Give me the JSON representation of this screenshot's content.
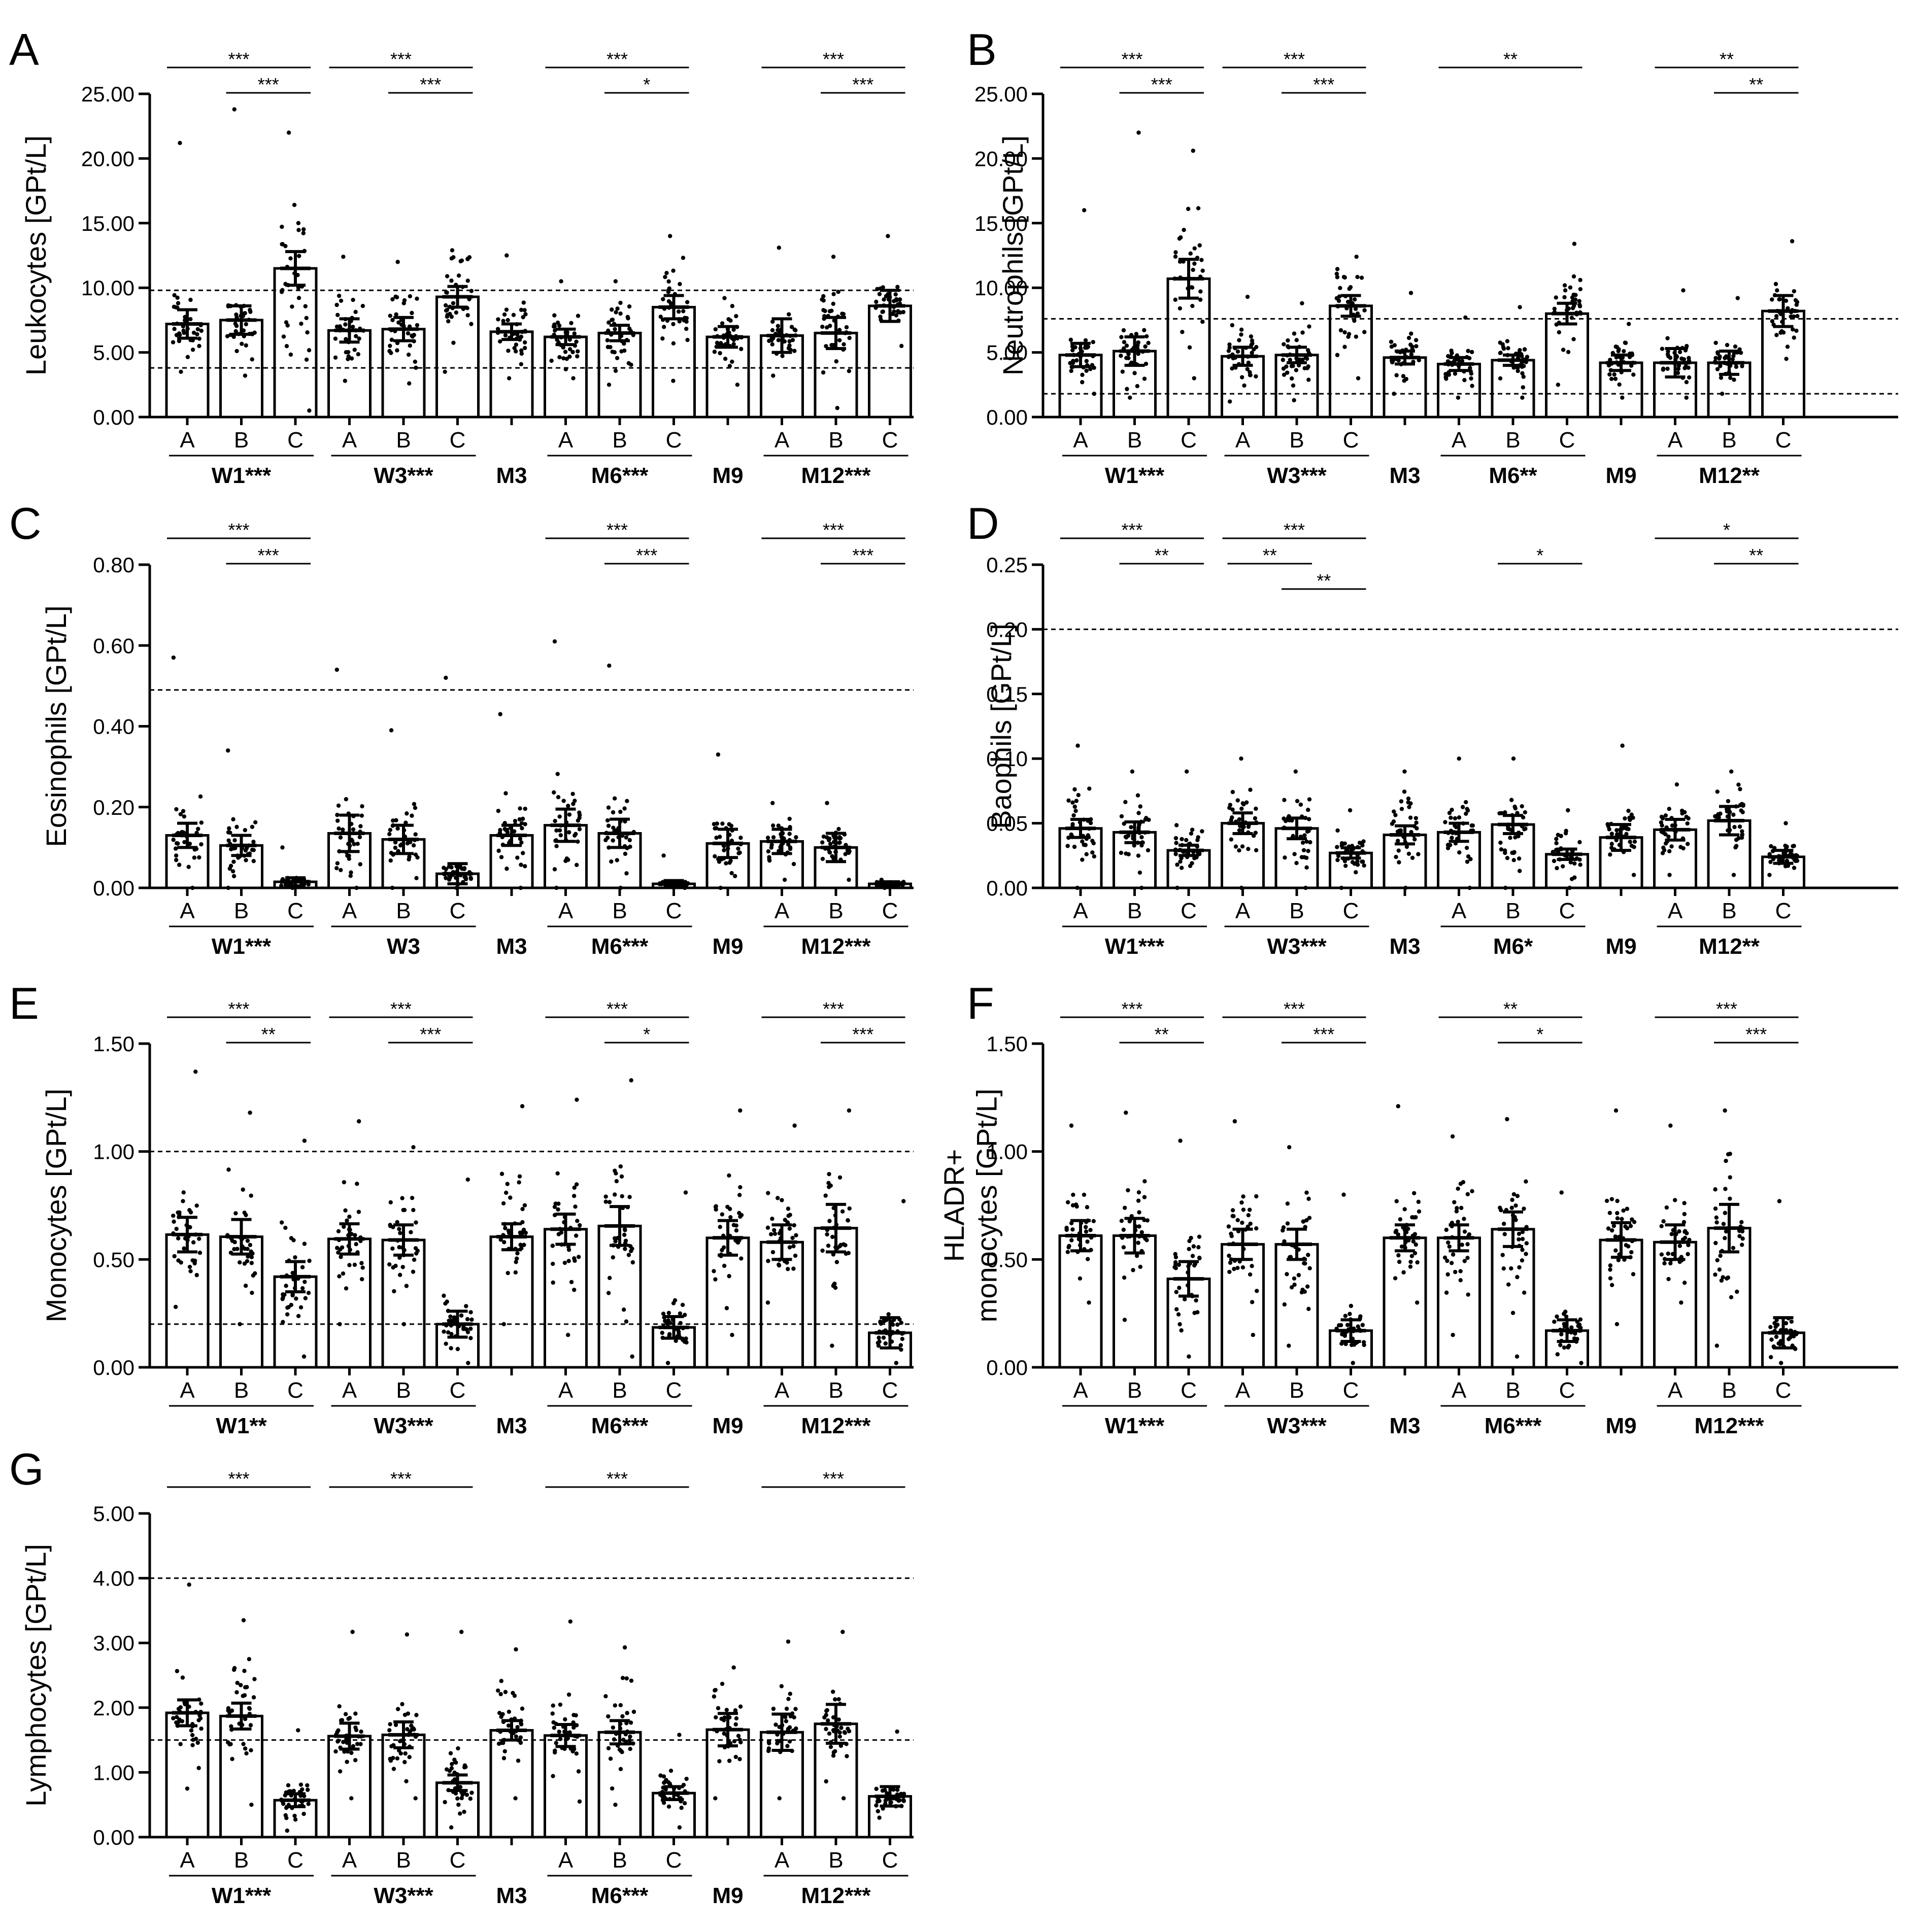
{
  "panels": [
    {
      "letter": "A",
      "chart_data": {
        "type": "bar",
        "title": "",
        "ylabel": "Leukocytes [GPt/L]",
        "ylim": [
          0,
          25
        ],
        "yticks": [
          "0.00",
          "5.00",
          "10.00",
          "15.00",
          "20.00",
          "25.00"
        ],
        "reference_lines": [
          3.8,
          9.8
        ],
        "categories": [
          "A",
          "B",
          "C",
          "A",
          "B",
          "C",
          "",
          "A",
          "B",
          "C",
          "",
          "A",
          "B",
          "C"
        ],
        "timepoints": [
          "W1***",
          "W3***",
          "M3",
          "M6***",
          "M9",
          "M12***"
        ],
        "bar_positions": [
          0,
          1,
          2,
          3,
          4,
          5,
          6,
          7,
          8,
          9,
          10,
          11,
          12,
          13
        ],
        "values": [
          7.2,
          7.5,
          11.5,
          6.7,
          6.8,
          9.3,
          6.6,
          6.2,
          6.5,
          8.5,
          6.2,
          6.3,
          6.5,
          8.6
        ],
        "sem": [
          1.1,
          1.1,
          1.3,
          0.9,
          0.9,
          0.8,
          0.6,
          0.6,
          0.6,
          0.9,
          0.8,
          1.3,
          1.2,
          1.2
        ],
        "maxima": [
          21.2,
          23.8,
          22.0,
          12.4,
          12.0,
          12.9,
          12.5,
          10.5,
          10.5,
          14.0,
          9.2,
          13.1,
          12.4,
          14.0
        ],
        "minima": [
          3.5,
          3.2,
          0.5,
          2.8,
          2.6,
          3.5,
          3.0,
          3.0,
          2.5,
          2.8,
          2.5,
          3.2,
          0.7,
          5.5
        ],
        "significance": [
          {
            "from": 0,
            "to": 2,
            "label": "***"
          },
          {
            "from": 1,
            "to": 2,
            "label": "***"
          },
          {
            "from": 3,
            "to": 5,
            "label": "***"
          },
          {
            "from": 4,
            "to": 5,
            "label": "***"
          },
          {
            "from": 7,
            "to": 9,
            "label": "***"
          },
          {
            "from": 8,
            "to": 9,
            "label": "*"
          },
          {
            "from": 11,
            "to": 13,
            "label": "***"
          },
          {
            "from": 12,
            "to": 13,
            "label": "***"
          }
        ]
      }
    },
    {
      "letter": "B",
      "chart_data": {
        "type": "bar",
        "title": "",
        "ylabel": "Neutrophils [GPt/L]",
        "ylim": [
          0,
          25
        ],
        "yticks": [
          "0.00",
          "5.00",
          "10.00",
          "15.00",
          "20.00",
          "25.00"
        ],
        "reference_lines": [
          1.8,
          7.6
        ],
        "categories": [
          "A",
          "B",
          "C",
          "A",
          "B",
          "C",
          "",
          "A",
          "B",
          "C",
          "",
          "A",
          "B",
          "C"
        ],
        "timepoints": [
          "W1***",
          "W3***",
          "M3",
          "M6**",
          "M9",
          "M12**"
        ],
        "bar_positions": [
          0,
          1,
          2,
          3,
          4,
          5,
          6,
          7,
          8,
          9,
          10,
          11,
          12,
          13
        ],
        "values": [
          4.8,
          5.1,
          10.7,
          4.7,
          4.8,
          8.6,
          4.6,
          4.1,
          4.4,
          8.0,
          4.2,
          4.2,
          4.2,
          8.2
        ],
        "sem": [
          0.9,
          1.1,
          1.5,
          0.7,
          0.6,
          0.8,
          0.5,
          0.5,
          0.4,
          0.8,
          0.6,
          1.1,
          0.9,
          1.2
        ],
        "maxima": [
          16.0,
          22.0,
          20.6,
          9.3,
          8.8,
          12.4,
          9.6,
          7.7,
          8.5,
          13.4,
          7.2,
          9.8,
          9.2,
          13.6
        ],
        "minima": [
          1.8,
          1.5,
          3.0,
          1.2,
          1.3,
          3.0,
          1.8,
          1.5,
          1.5,
          2.5,
          1.5,
          1.5,
          1.8,
          4.5
        ],
        "significance": [
          {
            "from": 0,
            "to": 2,
            "label": "***"
          },
          {
            "from": 1,
            "to": 2,
            "label": "***"
          },
          {
            "from": 3,
            "to": 5,
            "label": "***"
          },
          {
            "from": 4,
            "to": 5,
            "label": "***"
          },
          {
            "from": 7,
            "to": 9,
            "label": "**"
          },
          {
            "from": 11,
            "to": 13,
            "label": "**"
          },
          {
            "from": 12,
            "to": 13,
            "label": "**"
          }
        ]
      }
    },
    {
      "letter": "C",
      "chart_data": {
        "type": "bar",
        "title": "",
        "ylabel": "Eosinophils [GPt/L]",
        "ylim": [
          0,
          0.8
        ],
        "yticks": [
          "0.00",
          "0.20",
          "0.40",
          "0.60",
          "0.80"
        ],
        "reference_lines": [
          0.49
        ],
        "categories": [
          "A",
          "B",
          "C",
          "A",
          "B",
          "C",
          "",
          "A",
          "B",
          "C",
          "",
          "A",
          "B",
          "C"
        ],
        "timepoints": [
          "W1***",
          "W3",
          "M3",
          "M6***",
          "M9",
          "M12***"
        ],
        "bar_positions": [
          0,
          1,
          2,
          3,
          4,
          5,
          6,
          7,
          8,
          9,
          10,
          11,
          12,
          13
        ],
        "values": [
          0.13,
          0.105,
          0.015,
          0.135,
          0.12,
          0.035,
          0.13,
          0.155,
          0.135,
          0.01,
          0.11,
          0.115,
          0.1,
          0.01
        ],
        "sem": [
          0.03,
          0.025,
          0.01,
          0.045,
          0.035,
          0.025,
          0.025,
          0.04,
          0.035,
          0.008,
          0.035,
          0.03,
          0.035,
          0.005
        ],
        "maxima": [
          0.57,
          0.34,
          0.1,
          0.54,
          0.39,
          0.52,
          0.43,
          0.61,
          0.55,
          0.08,
          0.33,
          0.21,
          0.21,
          0.02
        ],
        "minima": [
          0.0,
          0.0,
          0.0,
          0.0,
          0.0,
          0.0,
          0.0,
          0.0,
          0.0,
          0.0,
          0.0,
          0.02,
          0.02,
          0.0
        ],
        "significance": [
          {
            "from": 0,
            "to": 2,
            "label": "***"
          },
          {
            "from": 1,
            "to": 2,
            "label": "***"
          },
          {
            "from": 7,
            "to": 9,
            "label": "***"
          },
          {
            "from": 8,
            "to": 9,
            "label": "***"
          },
          {
            "from": 11,
            "to": 13,
            "label": "***"
          },
          {
            "from": 12,
            "to": 13,
            "label": "***"
          }
        ]
      }
    },
    {
      "letter": "D",
      "chart_data": {
        "type": "bar",
        "title": "",
        "ylabel": "Baophils [GPt/L]",
        "ylim": [
          0,
          0.25
        ],
        "yticks": [
          "0.00",
          "0.05",
          "0.10",
          "0.15",
          "0.20",
          "0.25"
        ],
        "reference_lines": [
          0.2
        ],
        "categories": [
          "A",
          "B",
          "C",
          "A",
          "B",
          "C",
          "",
          "A",
          "B",
          "C",
          "",
          "A",
          "B",
          "C"
        ],
        "timepoints": [
          "W1***",
          "W3***",
          "M3",
          "M6*",
          "M9",
          "M12**"
        ],
        "bar_positions": [
          0,
          1,
          2,
          3,
          4,
          5,
          6,
          7,
          8,
          9,
          10,
          11,
          12,
          13
        ],
        "values": [
          0.046,
          0.043,
          0.029,
          0.05,
          0.046,
          0.027,
          0.041,
          0.043,
          0.049,
          0.026,
          0.039,
          0.045,
          0.052,
          0.024
        ],
        "sem": [
          0.007,
          0.008,
          0.004,
          0.008,
          0.008,
          0.004,
          0.007,
          0.007,
          0.007,
          0.004,
          0.01,
          0.008,
          0.011,
          0.005
        ],
        "maxima": [
          0.11,
          0.09,
          0.09,
          0.1,
          0.09,
          0.06,
          0.09,
          0.1,
          0.1,
          0.06,
          0.11,
          0.08,
          0.09,
          0.05
        ],
        "minima": [
          0.0,
          0.0,
          0.0,
          0.0,
          0.0,
          0.0,
          0.0,
          0.0,
          0.0,
          0.0,
          0.01,
          0.01,
          0.01,
          0.01
        ],
        "significance": [
          {
            "from": 0,
            "to": 2,
            "label": "***"
          },
          {
            "from": 1,
            "to": 2,
            "label": "**"
          },
          {
            "from": 3,
            "to": 5,
            "label": "***"
          },
          {
            "from": 3,
            "to": 4,
            "label": "**"
          },
          {
            "from": 4,
            "to": 5,
            "label": "**"
          },
          {
            "from": 8,
            "to": 9,
            "label": "*"
          },
          {
            "from": 11,
            "to": 13,
            "label": "*"
          },
          {
            "from": 12,
            "to": 13,
            "label": "**"
          }
        ]
      }
    },
    {
      "letter": "E",
      "chart_data": {
        "type": "bar",
        "title": "",
        "ylabel": "Monocytes [GPt/L]",
        "ylim": [
          0,
          1.5
        ],
        "yticks": [
          "0.00",
          "0.50",
          "1.00",
          "1.50"
        ],
        "reference_lines": [
          0.2,
          1.0
        ],
        "categories": [
          "A",
          "B",
          "C",
          "A",
          "B",
          "C",
          "",
          "A",
          "B",
          "C",
          "",
          "A",
          "B",
          "C"
        ],
        "timepoints": [
          "W1**",
          "W3***",
          "M3",
          "M6***",
          "M9",
          "M12***"
        ],
        "bar_positions": [
          0,
          1,
          2,
          3,
          4,
          5,
          6,
          7,
          8,
          9,
          10,
          11,
          12,
          13
        ],
        "values": [
          0.615,
          0.605,
          0.42,
          0.595,
          0.59,
          0.2,
          0.605,
          0.64,
          0.655,
          0.185,
          0.6,
          0.58,
          0.645,
          0.16
        ],
        "sem": [
          0.08,
          0.08,
          0.07,
          0.07,
          0.07,
          0.06,
          0.06,
          0.07,
          0.09,
          0.05,
          0.08,
          0.08,
          0.11,
          0.07
        ],
        "maxima": [
          1.37,
          1.18,
          1.05,
          1.14,
          1.02,
          0.87,
          1.21,
          1.24,
          1.33,
          0.81,
          1.19,
          1.12,
          1.19,
          0.77
        ],
        "minima": [
          0.28,
          0.2,
          0.05,
          0.2,
          0.2,
          0.02,
          0.2,
          0.15,
          0.05,
          0.02,
          0.15,
          0.3,
          0.1,
          0.02
        ],
        "significance": [
          {
            "from": 0,
            "to": 2,
            "label": "***"
          },
          {
            "from": 1,
            "to": 2,
            "label": "**"
          },
          {
            "from": 3,
            "to": 5,
            "label": "***"
          },
          {
            "from": 4,
            "to": 5,
            "label": "***"
          },
          {
            "from": 7,
            "to": 9,
            "label": "***"
          },
          {
            "from": 8,
            "to": 9,
            "label": "*"
          },
          {
            "from": 11,
            "to": 13,
            "label": "***"
          },
          {
            "from": 12,
            "to": 13,
            "label": "***"
          }
        ]
      }
    },
    {
      "letter": "F",
      "chart_data": {
        "type": "bar",
        "title": "",
        "ylabel": "HLADR+ monocytes [GPt/L]",
        "ylim": [
          0,
          1.5
        ],
        "yticks": [
          "0.00",
          "0.50",
          "1.00",
          "1.50"
        ],
        "reference_lines": [],
        "categories": [
          "A",
          "B",
          "C",
          "A",
          "B",
          "C",
          "",
          "A",
          "B",
          "C",
          "",
          "A",
          "B",
          "C"
        ],
        "timepoints": [
          "W1***",
          "W3***",
          "M3",
          "M6***",
          "M9",
          "M12***"
        ],
        "bar_positions": [
          0,
          1,
          2,
          3,
          4,
          5,
          6,
          7,
          8,
          9,
          10,
          11,
          12,
          13
        ],
        "values": [
          0.61,
          0.61,
          0.41,
          0.57,
          0.57,
          0.17,
          0.6,
          0.6,
          0.64,
          0.17,
          0.59,
          0.58,
          0.645,
          0.16
        ],
        "sem": [
          0.07,
          0.08,
          0.08,
          0.07,
          0.07,
          0.05,
          0.06,
          0.06,
          0.08,
          0.05,
          0.08,
          0.08,
          0.11,
          0.07
        ],
        "maxima": [
          1.12,
          1.18,
          1.05,
          1.14,
          1.02,
          0.8,
          1.21,
          1.07,
          1.15,
          0.81,
          1.19,
          1.12,
          1.19,
          0.77
        ],
        "minima": [
          0.3,
          0.22,
          0.05,
          0.15,
          0.1,
          0.02,
          0.3,
          0.15,
          0.05,
          0.02,
          0.2,
          0.3,
          0.1,
          0.02
        ],
        "significance": [
          {
            "from": 0,
            "to": 2,
            "label": "***"
          },
          {
            "from": 1,
            "to": 2,
            "label": "**"
          },
          {
            "from": 3,
            "to": 5,
            "label": "***"
          },
          {
            "from": 4,
            "to": 5,
            "label": "***"
          },
          {
            "from": 7,
            "to": 9,
            "label": "**"
          },
          {
            "from": 8,
            "to": 9,
            "label": "*"
          },
          {
            "from": 11,
            "to": 13,
            "label": "***"
          },
          {
            "from": 12,
            "to": 13,
            "label": "***"
          }
        ]
      }
    },
    {
      "letter": "G",
      "chart_data": {
        "type": "bar",
        "title": "",
        "ylabel": "Lymphocytes [GPt/L]",
        "ylim": [
          0,
          5
        ],
        "yticks": [
          "0.00",
          "1.00",
          "2.00",
          "3.00",
          "4.00",
          "5.00"
        ],
        "reference_lines": [
          1.5,
          4.0
        ],
        "categories": [
          "A",
          "B",
          "C",
          "A",
          "B",
          "C",
          "",
          "A",
          "B",
          "C",
          "",
          "A",
          "B",
          "C"
        ],
        "timepoints": [
          "W1***",
          "W3***",
          "M3",
          "M6***",
          "M9",
          "M12***"
        ],
        "bar_positions": [
          0,
          1,
          2,
          3,
          4,
          5,
          6,
          7,
          8,
          9,
          10,
          11,
          12,
          13
        ],
        "values": [
          1.92,
          1.87,
          0.57,
          1.56,
          1.58,
          0.84,
          1.65,
          1.57,
          1.62,
          0.68,
          1.66,
          1.62,
          1.75,
          0.63
        ],
        "sem": [
          0.2,
          0.2,
          0.1,
          0.2,
          0.2,
          0.12,
          0.15,
          0.17,
          0.18,
          0.1,
          0.25,
          0.28,
          0.3,
          0.15
        ],
        "maxima": [
          3.9,
          3.35,
          1.65,
          3.17,
          3.13,
          3.17,
          2.9,
          3.33,
          2.93,
          1.58,
          2.62,
          3.02,
          3.17,
          1.63
        ],
        "minima": [
          0.75,
          0.5,
          0.1,
          0.6,
          0.6,
          0.15,
          0.6,
          0.55,
          0.5,
          0.15,
          0.6,
          0.6,
          0.6,
          0.3
        ],
        "significance": [
          {
            "from": 0,
            "to": 2,
            "label": "***"
          },
          {
            "from": 3,
            "to": 5,
            "label": "***"
          },
          {
            "from": 7,
            "to": 9,
            "label": "***"
          },
          {
            "from": 11,
            "to": 13,
            "label": "***"
          }
        ]
      }
    }
  ]
}
